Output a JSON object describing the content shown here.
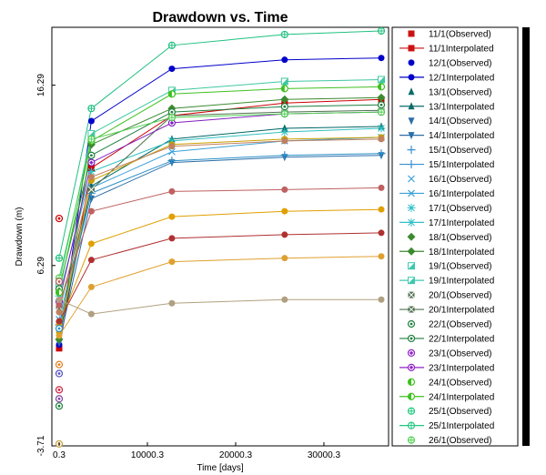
{
  "chart_data": {
    "type": "line",
    "title": "Drawdown vs. Time",
    "xlabel": "Time  [days]",
    "ylabel": "Drawdown (m)",
    "xlim": [
      0.3,
      36500
    ],
    "ylim": [
      -3.71,
      19.5
    ],
    "x_ticks": [
      "0.3",
      "10000.3",
      "20000.3",
      "30000.3"
    ],
    "y_ticks": [
      "16.29",
      "6.29",
      "-3.71"
    ],
    "grid": false,
    "legend_position": "right",
    "x": [
      0.3,
      3650,
      12775,
      25550,
      36500
    ],
    "series": [
      {
        "name": "11/1Interpolated",
        "marker": "square",
        "color": "#cc0000",
        "values": [
          1.7,
          11.7,
          14.6,
          15.3,
          15.5
        ]
      },
      {
        "name": "12/1Interpolated",
        "marker": "circle",
        "color": "#0000cc",
        "values": [
          1.9,
          14.3,
          17.2,
          17.7,
          17.8
        ]
      },
      {
        "name": "13/1Interpolated",
        "marker": "triangle",
        "color": "#006666",
        "values": [
          2.3,
          10.7,
          13.3,
          13.9,
          14.0
        ]
      },
      {
        "name": "14/1Interpolated",
        "marker": "tri-down",
        "color": "#2a6ea8",
        "values": [
          2.0,
          10.0,
          12.0,
          12.3,
          12.4
        ]
      },
      {
        "name": "15/1Interpolated",
        "marker": "plus",
        "color": "#2a8ec8",
        "values": [
          3.0,
          10.3,
          12.1,
          12.4,
          12.5
        ]
      },
      {
        "name": "16/1Interpolated",
        "marker": "x",
        "color": "#3aa0d8",
        "values": [
          3.3,
          10.6,
          12.6,
          13.2,
          13.4
        ]
      },
      {
        "name": "17/1Interpolated",
        "marker": "asterisk",
        "color": "#30c0c0",
        "values": [
          4.6,
          11.5,
          13.2,
          13.7,
          13.9
        ]
      },
      {
        "name": "18/1Interpolated",
        "marker": "diamond",
        "color": "#3c8a30",
        "values": [
          2.2,
          13.0,
          15.0,
          15.5,
          15.6
        ]
      },
      {
        "name": "19/1Interpolated",
        "marker": "sq-half",
        "color": "#40c8a0",
        "values": [
          5.3,
          13.6,
          16.0,
          16.5,
          16.6
        ]
      },
      {
        "name": "20/1Interpolated",
        "marker": "sq-x",
        "color": "#507050",
        "values": [
          4.0,
          10.5,
          14.6,
          14.8,
          14.9
        ]
      },
      {
        "name": "22/1Interpolated",
        "marker": "circ-dot",
        "color": "#208040",
        "values": [
          5.0,
          12.4,
          14.8,
          15.1,
          15.2
        ]
      },
      {
        "name": "23/1Interpolated",
        "marker": "circ-dia",
        "color": "#8020c0",
        "values": [
          4.3,
          12.0,
          14.2,
          14.7,
          14.8
        ]
      },
      {
        "name": "24/1Interpolated",
        "marker": "circ-half",
        "color": "#40c020",
        "values": [
          4.8,
          13.2,
          15.8,
          16.1,
          16.2
        ]
      },
      {
        "name": "25/1Interpolated",
        "marker": "circ-plus",
        "color": "#20c080",
        "values": [
          6.7,
          15.0,
          18.5,
          19.1,
          19.3
        ]
      },
      {
        "name": "26/1Interpolated",
        "marker": "circ-plus",
        "color": "#50d050",
        "values": [
          5.6,
          13.3,
          14.5,
          14.7,
          14.8
        ]
      },
      {
        "name": "",
        "marker": "circle",
        "color": "#e0a000",
        "values": [
          3.0,
          7.5,
          9.0,
          9.3,
          9.4
        ]
      },
      {
        "name": "",
        "marker": "circle",
        "color": "#c8a000",
        "values": [
          2.6,
          11.0,
          13.0,
          13.3,
          13.4
        ]
      },
      {
        "name": "",
        "marker": "circle",
        "color": "#b03030",
        "values": [
          3.2,
          6.6,
          7.8,
          8.0,
          8.1
        ]
      },
      {
        "name": "",
        "marker": "circle",
        "color": "#c06060",
        "values": [
          4.1,
          9.3,
          10.4,
          10.5,
          10.6
        ]
      },
      {
        "name": "",
        "marker": "circle",
        "color": "#e0a030",
        "values": [
          2.4,
          5.1,
          6.5,
          6.7,
          6.8
        ]
      },
      {
        "name": "",
        "marker": "circle",
        "color": "#c08060",
        "values": [
          3.7,
          11.2,
          12.9,
          13.2,
          13.3
        ]
      },
      {
        "name": "",
        "marker": "circle",
        "color": "#b0a080",
        "values": [
          4.4,
          3.6,
          4.2,
          4.4,
          4.4
        ]
      }
    ],
    "observed_at_start": [
      {
        "value": 8.9,
        "color": "#cc0000"
      },
      {
        "value": 5.4,
        "color": "#c06060"
      },
      {
        "value": 2.8,
        "color": "#2a8ec8"
      },
      {
        "value": 0.8,
        "color": "#e08020"
      },
      {
        "value": 0.3,
        "color": "#5050c0"
      },
      {
        "value": -0.6,
        "color": "#cc2040"
      },
      {
        "value": -1.1,
        "color": "#8040a0"
      },
      {
        "value": -1.5,
        "color": "#208040"
      },
      {
        "value": -3.6,
        "color": "#c8a040"
      }
    ],
    "legend": [
      {
        "label": "11/1(Observed)",
        "marker": "square",
        "color": "#cc1111",
        "line": false
      },
      {
        "label": "11/1Interpolated",
        "marker": "square",
        "color": "#cc1111",
        "line": true
      },
      {
        "label": "12/1(Observed)",
        "marker": "circle",
        "color": "#0000cc",
        "line": false
      },
      {
        "label": "12/1Interpolated",
        "marker": "circle",
        "color": "#0000cc",
        "line": true
      },
      {
        "label": "13/1(Observed)",
        "marker": "triangle",
        "color": "#0b6b6b",
        "line": false
      },
      {
        "label": "13/1Interpolated",
        "marker": "triangle",
        "color": "#0b6b6b",
        "line": true
      },
      {
        "label": "14/1(Observed)",
        "marker": "tri-down",
        "color": "#2a6ea8",
        "line": false
      },
      {
        "label": "14/1Interpolated",
        "marker": "tri-down",
        "color": "#2a6ea8",
        "line": true
      },
      {
        "label": "15/1(Observed)",
        "marker": "plus",
        "color": "#3a90d0",
        "line": false
      },
      {
        "label": "15/1Interpolated",
        "marker": "plus",
        "color": "#3a90d0",
        "line": true
      },
      {
        "label": "16/1(Observed)",
        "marker": "x",
        "color": "#3aa0d8",
        "line": false
      },
      {
        "label": "16/1Interpolated",
        "marker": "x",
        "color": "#3aa0d8",
        "line": true
      },
      {
        "label": "17/1(Observed)",
        "marker": "asterisk",
        "color": "#30c0c8",
        "line": false
      },
      {
        "label": "17/1Interpolated",
        "marker": "asterisk",
        "color": "#30c0c8",
        "line": true
      },
      {
        "label": "18/1(Observed)",
        "marker": "diamond",
        "color": "#3c8a30",
        "line": false
      },
      {
        "label": "18/1Interpolated",
        "marker": "diamond",
        "color": "#3c8a30",
        "line": true
      },
      {
        "label": "19/1(Observed)",
        "marker": "sq-half",
        "color": "#40c8b0",
        "line": false
      },
      {
        "label": "19/1Interpolated",
        "marker": "sq-half",
        "color": "#40c8b0",
        "line": true
      },
      {
        "label": "20/1(Observed)",
        "marker": "sq-x",
        "color": "#507050",
        "line": false
      },
      {
        "label": "20/1Interpolated",
        "marker": "sq-x",
        "color": "#507050",
        "line": true
      },
      {
        "label": "22/1(Observed)",
        "marker": "circ-dot",
        "color": "#208040",
        "line": false
      },
      {
        "label": "22/1Interpolated",
        "marker": "circ-dot",
        "color": "#208040",
        "line": true
      },
      {
        "label": "23/1(Observed)",
        "marker": "circ-dia",
        "color": "#9020c8",
        "line": false
      },
      {
        "label": "23/1Interpolated",
        "marker": "circ-dia",
        "color": "#9020c8",
        "line": true
      },
      {
        "label": "24/1(Observed)",
        "marker": "circ-half",
        "color": "#40c020",
        "line": false
      },
      {
        "label": "24/1Interpolated",
        "marker": "circ-half",
        "color": "#40c020",
        "line": true
      },
      {
        "label": "25/1(Observed)",
        "marker": "circ-plus",
        "color": "#20c880",
        "line": false
      },
      {
        "label": "25/1Interpolated",
        "marker": "circ-plus",
        "color": "#20c880",
        "line": true
      },
      {
        "label": "26/1(Observed)",
        "marker": "circ-plus",
        "color": "#50d050",
        "line": false
      }
    ]
  }
}
